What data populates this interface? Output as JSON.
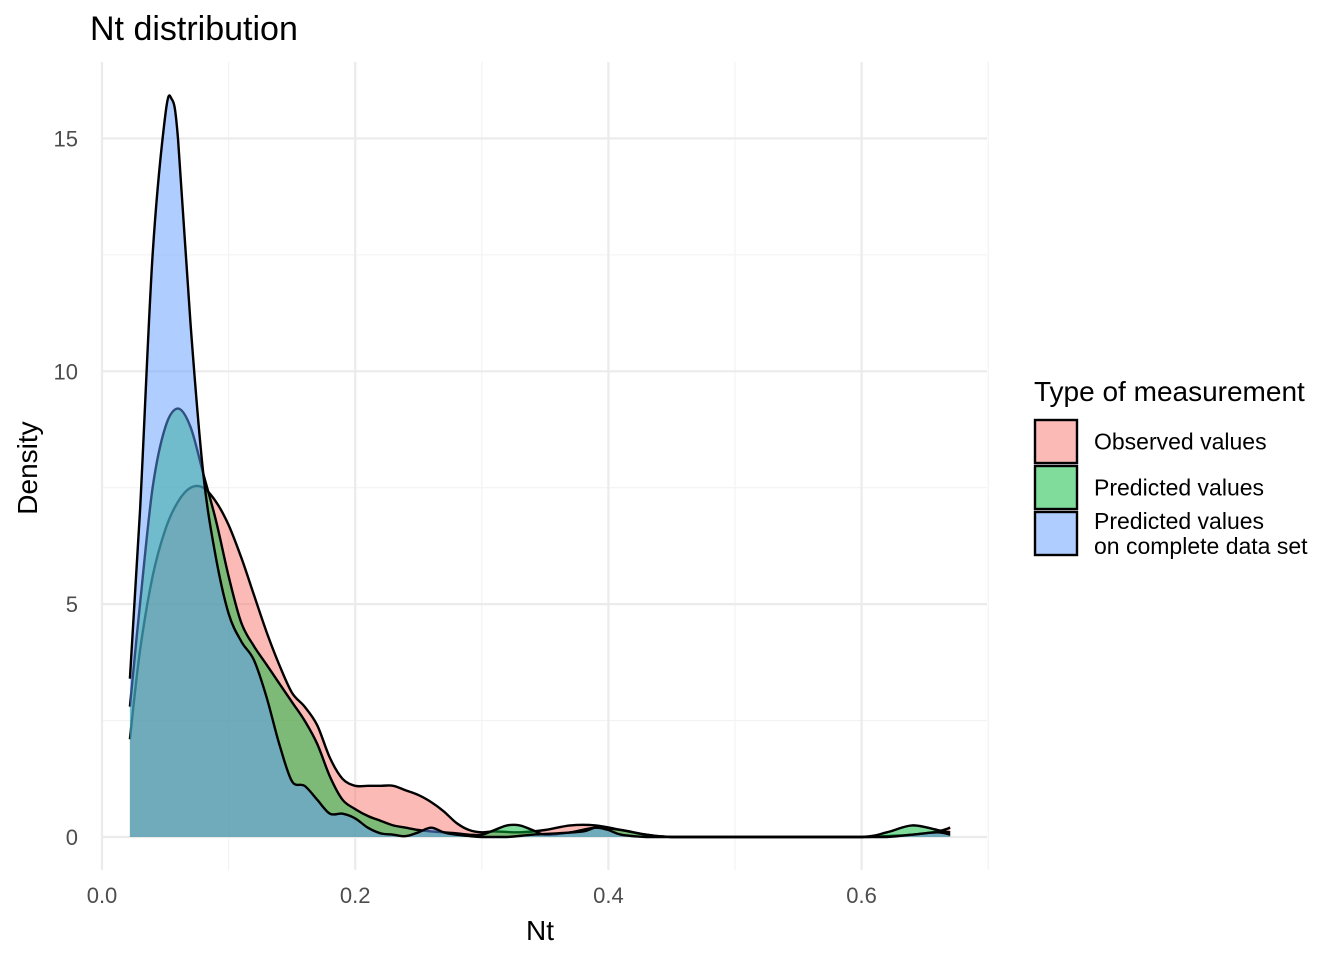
{
  "chart_data": {
    "type": "area",
    "title": "Nt distribution",
    "xlabel": "Nt",
    "ylabel": "Density",
    "xlim": [
      0.0,
      0.7
    ],
    "ylim": [
      0,
      16
    ],
    "x_ticks": [
      0.0,
      0.2,
      0.4,
      0.6
    ],
    "x_tick_labels": [
      "0.0",
      "0.2",
      "0.4",
      "0.6"
    ],
    "y_ticks": [
      0,
      5,
      10,
      15
    ],
    "y_tick_labels": [
      "0",
      "5",
      "10",
      "15"
    ],
    "grid": true,
    "legend": {
      "title": "Type of measurement",
      "position": "right",
      "entries": [
        {
          "label_lines": [
            "Observed values"
          ],
          "color": "#f8766d"
        },
        {
          "label_lines": [
            "Predicted values"
          ],
          "color": "#00ba38"
        },
        {
          "label_lines": [
            "Predicted values",
            "on complete data set"
          ],
          "color": "#619cff"
        }
      ]
    },
    "series": [
      {
        "name": "Observed values",
        "color": "#f8766d",
        "x": [
          0.022,
          0.03,
          0.04,
          0.05,
          0.06,
          0.07,
          0.08,
          0.09,
          0.1,
          0.11,
          0.12,
          0.13,
          0.14,
          0.15,
          0.16,
          0.17,
          0.18,
          0.19,
          0.2,
          0.21,
          0.22,
          0.23,
          0.24,
          0.25,
          0.26,
          0.27,
          0.28,
          0.29,
          0.3,
          0.31,
          0.33,
          0.35,
          0.37,
          0.39,
          0.41,
          0.43,
          0.45,
          0.5,
          0.55,
          0.6,
          0.62,
          0.64,
          0.66,
          0.67
        ],
        "values": [
          2.1,
          4.0,
          5.6,
          6.6,
          7.2,
          7.5,
          7.5,
          7.2,
          6.7,
          6.0,
          5.2,
          4.4,
          3.7,
          3.1,
          2.8,
          2.4,
          1.7,
          1.25,
          1.1,
          1.1,
          1.1,
          1.1,
          1.0,
          0.9,
          0.75,
          0.55,
          0.3,
          0.15,
          0.1,
          0.12,
          0.1,
          0.15,
          0.25,
          0.25,
          0.15,
          0.05,
          0.0,
          0.0,
          0.0,
          0.0,
          0.02,
          0.05,
          0.12,
          0.2
        ]
      },
      {
        "name": "Predicted values",
        "color": "#00ba38",
        "x": [
          0.022,
          0.03,
          0.04,
          0.05,
          0.06,
          0.07,
          0.08,
          0.09,
          0.1,
          0.11,
          0.12,
          0.13,
          0.14,
          0.15,
          0.16,
          0.17,
          0.18,
          0.19,
          0.2,
          0.21,
          0.22,
          0.23,
          0.24,
          0.25,
          0.26,
          0.27,
          0.28,
          0.29,
          0.3,
          0.31,
          0.32,
          0.33,
          0.34,
          0.35,
          0.37,
          0.39,
          0.41,
          0.43,
          0.45,
          0.5,
          0.55,
          0.6,
          0.62,
          0.64,
          0.66,
          0.67
        ],
        "values": [
          2.8,
          5.0,
          7.5,
          8.8,
          9.2,
          8.8,
          7.8,
          6.8,
          5.6,
          4.6,
          4.1,
          3.7,
          3.3,
          2.9,
          2.5,
          2.0,
          1.3,
          0.8,
          0.6,
          0.45,
          0.35,
          0.25,
          0.2,
          0.15,
          0.12,
          0.1,
          0.08,
          0.05,
          0.05,
          0.15,
          0.25,
          0.25,
          0.15,
          0.05,
          0.1,
          0.2,
          0.15,
          0.05,
          0.0,
          0.0,
          0.0,
          0.0,
          0.1,
          0.25,
          0.15,
          0.1
        ]
      },
      {
        "name": "Predicted values on complete data set",
        "color": "#619cff",
        "x": [
          0.022,
          0.03,
          0.04,
          0.05,
          0.055,
          0.06,
          0.07,
          0.08,
          0.09,
          0.1,
          0.11,
          0.12,
          0.13,
          0.14,
          0.15,
          0.16,
          0.17,
          0.18,
          0.19,
          0.2,
          0.21,
          0.22,
          0.23,
          0.24,
          0.25,
          0.26,
          0.27,
          0.28,
          0.3,
          0.32,
          0.34,
          0.36,
          0.38,
          0.39,
          0.4,
          0.41,
          0.43,
          0.45,
          0.5,
          0.55,
          0.6,
          0.62,
          0.64,
          0.66,
          0.67
        ],
        "values": [
          3.4,
          7.0,
          12.5,
          15.5,
          15.85,
          15.0,
          11.0,
          7.8,
          6.0,
          4.8,
          4.2,
          3.8,
          3.0,
          2.0,
          1.2,
          1.1,
          0.8,
          0.5,
          0.5,
          0.4,
          0.2,
          0.08,
          0.05,
          0.02,
          0.1,
          0.2,
          0.1,
          0.05,
          0.0,
          0.0,
          0.05,
          0.08,
          0.12,
          0.2,
          0.15,
          0.05,
          0.0,
          0.0,
          0.0,
          0.0,
          0.0,
          0.0,
          0.05,
          0.1,
          0.05
        ]
      }
    ]
  }
}
